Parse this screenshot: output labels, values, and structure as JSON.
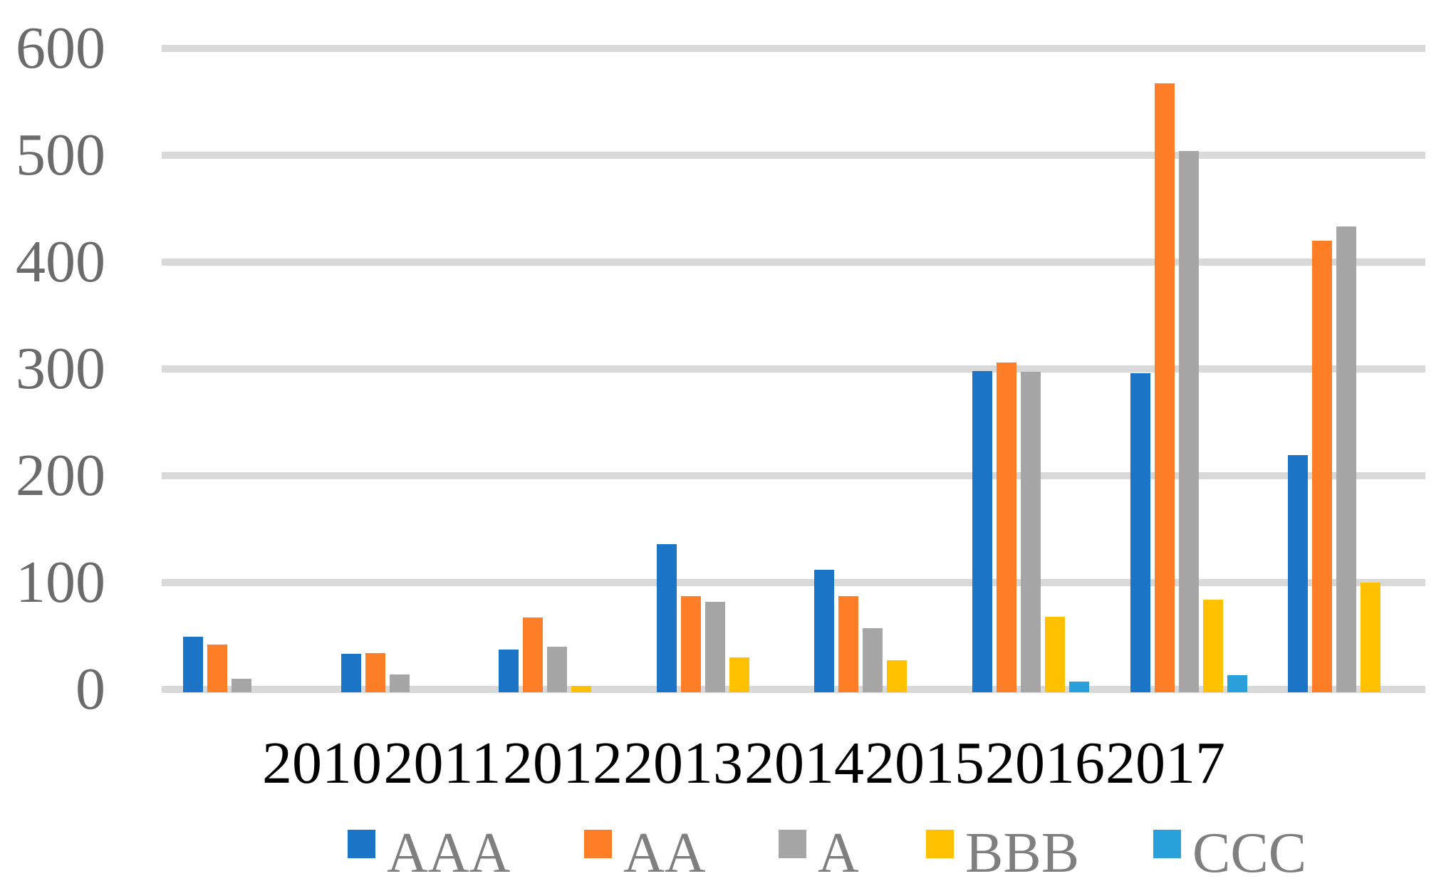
{
  "chart_data": {
    "type": "bar",
    "title": "",
    "xlabel": "",
    "ylabel": "",
    "categories": [
      "2010",
      "2011",
      "2012",
      "2013",
      "2014",
      "2015",
      "2016",
      "2017"
    ],
    "series": [
      {
        "name": "AAA",
        "color": "#1B74C5",
        "values": [
          49,
          33,
          37,
          136,
          112,
          298,
          296,
          219
        ]
      },
      {
        "name": "AA",
        "color": "#FD7E26",
        "values": [
          42,
          34,
          67,
          87,
          87,
          306,
          567,
          420
        ]
      },
      {
        "name": "A",
        "color": "#A6A6A6",
        "values": [
          10,
          14,
          40,
          82,
          57,
          297,
          504,
          433
        ]
      },
      {
        "name": "BBB",
        "color": "#FFC000",
        "values": [
          0,
          0,
          3,
          30,
          27,
          68,
          84,
          100
        ]
      },
      {
        "name": "CCC",
        "color": "#2AA0DA",
        "values": [
          0,
          0,
          0,
          0,
          0,
          7,
          13,
          0
        ]
      }
    ],
    "y_axis": {
      "ticks": [
        0,
        100,
        200,
        300,
        400,
        500,
        600
      ],
      "ylim": [
        0,
        600
      ]
    },
    "legend": {
      "position": "bottom",
      "entries": [
        "AAA",
        "AA",
        "A",
        "BBB",
        "CCC"
      ]
    },
    "grid": "horizontal",
    "colors": {
      "gridline": "#D9D9D9",
      "y_tick_text": "#6B6B6B",
      "x_tick_text": "#000000",
      "legend_text": "#7F7F7F",
      "background": "#FFFFFF"
    }
  }
}
